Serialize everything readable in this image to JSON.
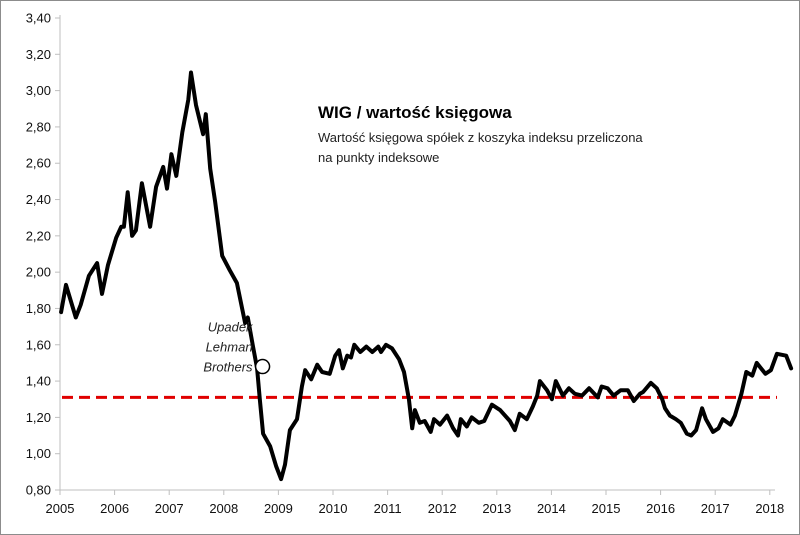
{
  "chart_data": {
    "type": "line",
    "title": "WIG / wartość księgowa",
    "subtitle_lines": [
      "Wartość księgowa spółek z koszyka indeksu przeliczona",
      "na punkty indeksowe"
    ],
    "xlabel": "",
    "ylabel": "",
    "xlim": [
      2005,
      2018.4
    ],
    "ylim": [
      0.8,
      3.4
    ],
    "x_ticks": [
      "2005",
      "2006",
      "2007",
      "2008",
      "2009",
      "2010",
      "2011",
      "2012",
      "2013",
      "2014",
      "2015",
      "2016",
      "2017",
      "2018"
    ],
    "y_ticks": [
      "0,80",
      "1,00",
      "1,20",
      "1,40",
      "1,60",
      "1,80",
      "2,00",
      "2,20",
      "2,40",
      "2,60",
      "2,80",
      "3,00",
      "3,20",
      "3,40"
    ],
    "grid": false,
    "reference_line": {
      "value": 1.31,
      "color": "#e00000",
      "style": "dashed"
    },
    "annotation": {
      "lines": [
        "Upadek",
        "Lehman",
        "Brothers"
      ],
      "x": 2008.71,
      "y": 1.48
    },
    "series": [
      {
        "name": "WIG / wartość księgowa",
        "color": "#000000",
        "x": [
          2005.02,
          2005.11,
          2005.29,
          2005.38,
          2005.53,
          2005.68,
          2005.77,
          2005.88,
          2006.03,
          2006.12,
          2006.17,
          2006.24,
          2006.32,
          2006.39,
          2006.5,
          2006.65,
          2006.76,
          2006.89,
          2006.96,
          2007.04,
          2007.13,
          2007.24,
          2007.35,
          2007.4,
          2007.49,
          2007.62,
          2007.67,
          2007.75,
          2007.84,
          2007.97,
          2008.11,
          2008.24,
          2008.39,
          2008.44,
          2008.53,
          2008.61,
          2008.66,
          2008.72,
          2008.85,
          2008.96,
          2009.05,
          2009.12,
          2009.21,
          2009.34,
          2009.43,
          2009.49,
          2009.6,
          2009.71,
          2009.8,
          2009.94,
          2010.04,
          2010.11,
          2010.18,
          2010.26,
          2010.33,
          2010.39,
          2010.5,
          2010.61,
          2010.72,
          2010.83,
          2010.88,
          2010.97,
          2011.08,
          2011.21,
          2011.3,
          2011.39,
          2011.45,
          2011.5,
          2011.59,
          2011.68,
          2011.79,
          2011.85,
          2011.96,
          2012.09,
          2012.2,
          2012.29,
          2012.34,
          2012.45,
          2012.54,
          2012.67,
          2012.77,
          2012.91,
          2013.06,
          2013.24,
          2013.33,
          2013.42,
          2013.55,
          2013.66,
          2013.74,
          2013.79,
          2013.92,
          2014.01,
          2014.08,
          2014.21,
          2014.32,
          2014.43,
          2014.56,
          2014.69,
          2014.85,
          2014.92,
          2015.03,
          2015.14,
          2015.27,
          2015.4,
          2015.51,
          2015.62,
          2015.68,
          2015.82,
          2015.93,
          2016.03,
          2016.08,
          2016.17,
          2016.28,
          2016.37,
          2016.48,
          2016.56,
          2016.65,
          2016.76,
          2016.83,
          2016.96,
          2017.06,
          2017.14,
          2017.28,
          2017.36,
          2017.48,
          2017.57,
          2017.68,
          2017.76,
          2017.92,
          2018.02,
          2018.13,
          2018.3,
          2018.39
        ],
        "y": [
          1.78,
          1.93,
          1.75,
          1.82,
          1.98,
          2.05,
          1.88,
          2.04,
          2.19,
          2.25,
          2.25,
          2.44,
          2.2,
          2.23,
          2.49,
          2.25,
          2.47,
          2.58,
          2.46,
          2.65,
          2.53,
          2.77,
          2.95,
          3.1,
          2.92,
          2.76,
          2.87,
          2.57,
          2.39,
          2.09,
          2.01,
          1.94,
          1.72,
          1.75,
          1.6,
          1.47,
          1.3,
          1.11,
          1.04,
          0.93,
          0.86,
          0.94,
          1.13,
          1.19,
          1.37,
          1.46,
          1.41,
          1.49,
          1.45,
          1.44,
          1.54,
          1.57,
          1.47,
          1.54,
          1.53,
          1.6,
          1.56,
          1.59,
          1.56,
          1.59,
          1.56,
          1.6,
          1.58,
          1.52,
          1.45,
          1.3,
          1.14,
          1.24,
          1.17,
          1.18,
          1.12,
          1.19,
          1.16,
          1.21,
          1.14,
          1.1,
          1.19,
          1.15,
          1.2,
          1.17,
          1.18,
          1.27,
          1.24,
          1.18,
          1.13,
          1.22,
          1.19,
          1.26,
          1.32,
          1.4,
          1.35,
          1.3,
          1.4,
          1.32,
          1.36,
          1.33,
          1.32,
          1.36,
          1.31,
          1.37,
          1.36,
          1.32,
          1.35,
          1.35,
          1.29,
          1.33,
          1.34,
          1.39,
          1.36,
          1.3,
          1.25,
          1.21,
          1.19,
          1.17,
          1.11,
          1.1,
          1.13,
          1.25,
          1.19,
          1.12,
          1.14,
          1.19,
          1.16,
          1.21,
          1.33,
          1.45,
          1.43,
          1.5,
          1.44,
          1.46,
          1.55,
          1.54,
          1.47
        ]
      }
    ]
  }
}
